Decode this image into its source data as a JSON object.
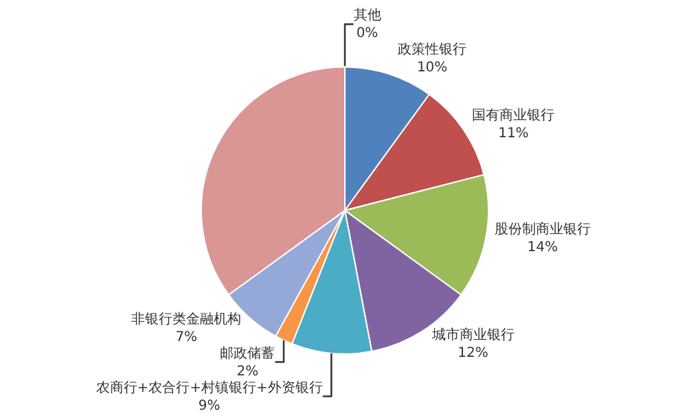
{
  "chart_data": {
    "type": "pie",
    "categories": [
      "其他",
      "政策性银行",
      "国有商业银行",
      "股份制商业银行",
      "城市商业银行",
      "农商行+农合行+村镇银行+外资银行",
      "邮政储蓄",
      "非银行类金融机构",
      null
    ],
    "values": [
      0,
      10,
      11,
      14,
      12,
      9,
      2,
      7,
      35
    ],
    "value_labels": [
      "0%",
      "10%",
      "11%",
      "14%",
      "12%",
      "9%",
      "2%",
      "7%",
      null
    ],
    "colors": [
      "#c0504d",
      "#4f81bd",
      "#c0504d",
      "#9bbb59",
      "#8064a2",
      "#4bacc6",
      "#f79646",
      "#95a9d9",
      "#d99694"
    ],
    "legend": false
  }
}
